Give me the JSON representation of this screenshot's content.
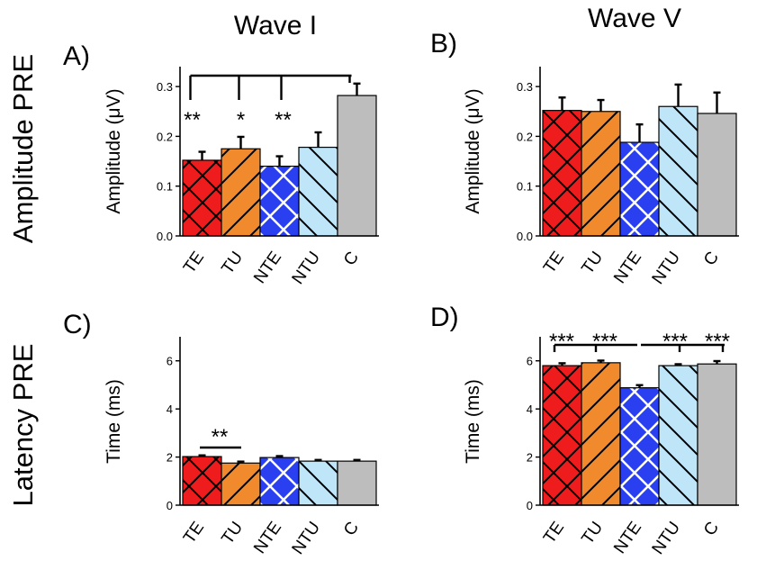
{
  "headers": {
    "col1": "Wave I",
    "col2": "Wave V",
    "row1": "Amplitude PRE",
    "row2": "Latency PRE"
  },
  "colors": {
    "TE": "#ee1c1c",
    "TU": "#f08a2c",
    "NTE": "#2a3ff0",
    "NTU": "#bfe6f8",
    "C": "#bdbdbd"
  },
  "chart_data": [
    {
      "type": "bar",
      "panel_label": "A)",
      "title": "Wave I",
      "categories": [
        "TE",
        "TU",
        "NTE",
        "NTU",
        "C"
      ],
      "values": [
        0.152,
        0.175,
        0.14,
        0.178,
        0.282
      ],
      "errors": [
        0.017,
        0.024,
        0.02,
        0.03,
        0.024
      ],
      "ylabel": "Amplitude (μV)",
      "ylim": [
        0,
        0.34
      ],
      "yticks": [
        0.0,
        0.1,
        0.2,
        0.3
      ],
      "ytick_labels": [
        "0.0",
        "0.1",
        "0.2",
        "0.3"
      ],
      "annotations": [
        {
          "category": "TE",
          "text": "**"
        },
        {
          "category": "TU",
          "text": "*"
        },
        {
          "category": "NTE",
          "text": "**"
        }
      ],
      "bracket": {
        "from": "TE",
        "to": "C",
        "drops": [
          "TE",
          "TU",
          "NTE"
        ]
      }
    },
    {
      "type": "bar",
      "panel_label": "B)",
      "title": "Wave V",
      "categories": [
        "TE",
        "TU",
        "NTE",
        "NTU",
        "C"
      ],
      "values": [
        0.252,
        0.25,
        0.188,
        0.26,
        0.246
      ],
      "errors": [
        0.026,
        0.023,
        0.036,
        0.044,
        0.042
      ],
      "ylabel": "Amplitude (μV)",
      "ylim": [
        0,
        0.34
      ],
      "yticks": [
        0.0,
        0.1,
        0.2,
        0.3
      ],
      "ytick_labels": [
        "0.0",
        "0.1",
        "0.2",
        "0.3"
      ]
    },
    {
      "type": "bar",
      "panel_label": "C)",
      "categories": [
        "TE",
        "TU",
        "NTE",
        "NTU",
        "C"
      ],
      "values": [
        2.02,
        1.75,
        1.98,
        1.83,
        1.83
      ],
      "errors": [
        0.05,
        0.06,
        0.06,
        0.05,
        0.05
      ],
      "ylabel": "Time (ms)",
      "ylim": [
        0,
        7
      ],
      "yticks": [
        0,
        2,
        4,
        6
      ],
      "ytick_labels": [
        "0",
        "2",
        "4",
        "6"
      ],
      "annotations": [
        {
          "between": [
            "TE",
            "TU"
          ],
          "text": "**"
        }
      ]
    },
    {
      "type": "bar",
      "panel_label": "D)",
      "categories": [
        "TE",
        "TU",
        "NTE",
        "NTU",
        "C"
      ],
      "values": [
        5.8,
        5.92,
        4.88,
        5.8,
        5.87
      ],
      "errors": [
        0.1,
        0.09,
        0.11,
        0.06,
        0.12
      ],
      "ylabel": "Time (ms)",
      "ylim": [
        0,
        7
      ],
      "yticks": [
        0,
        2,
        4,
        6
      ],
      "ytick_labels": [
        "0",
        "2",
        "4",
        "6"
      ],
      "annotations": [
        {
          "category": "TE",
          "text": "***"
        },
        {
          "category": "TU",
          "text": "***"
        },
        {
          "category": "NTU",
          "text": "***"
        },
        {
          "category": "C",
          "text": "***"
        }
      ],
      "bracket": {
        "from": "TE",
        "to": "C",
        "drops": [
          "TE",
          "TU",
          "NTU",
          "C"
        ]
      }
    }
  ]
}
